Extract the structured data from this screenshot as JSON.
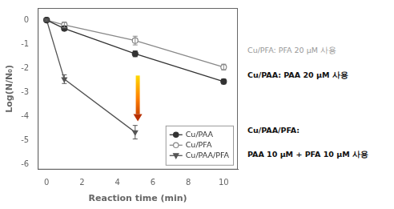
{
  "chart_data": {
    "type": "line",
    "x": [
      0,
      1,
      5,
      10
    ],
    "series": [
      {
        "name": "Cu/PAA",
        "color": "#333333",
        "marker": "circle",
        "values": [
          0,
          -0.35,
          -1.4,
          -2.55
        ],
        "yerr": [
          0.04,
          0.08,
          0.12,
          0.1
        ]
      },
      {
        "name": "Cu/PFA",
        "color": "#888888",
        "marker": "circle_open",
        "values": [
          0,
          -0.2,
          -0.85,
          -1.95
        ],
        "yerr": [
          0.04,
          0.12,
          0.18,
          0.12
        ]
      },
      {
        "name": "Cu/PAA/PFA",
        "color": "#555555",
        "marker": "triangle_down",
        "values": [
          0,
          -2.45,
          -4.65,
          null
        ],
        "yerr": [
          0.04,
          0.18,
          0.28,
          null
        ]
      }
    ],
    "xlabel": "Reaction time (min)",
    "ylabel": "Log(N/N₀)",
    "xlim": [
      -0.5,
      10.8
    ],
    "ylim": [
      -6.2,
      0.5
    ],
    "xticks": [
      0,
      2,
      4,
      6,
      8,
      10
    ],
    "yticks": [
      0,
      -1,
      -2,
      -3,
      -4,
      -5,
      -6
    ],
    "grid": false,
    "legend": "lower right",
    "arrow": {
      "x": 5.15,
      "from": -2.3,
      "to": -4.2
    },
    "annotations": [
      {
        "text": "Cu/PFA: PFA 20 μM 사용",
        "color": "#999999"
      },
      {
        "text": "Cu/PAA: PAA 20 μM 사용",
        "color": "#111111"
      },
      {
        "text": "Cu/PAA/PFA:",
        "color": "#111111"
      },
      {
        "text": "PAA 10 μM + PFA 10 μM 사용",
        "color": "#111111"
      }
    ]
  }
}
